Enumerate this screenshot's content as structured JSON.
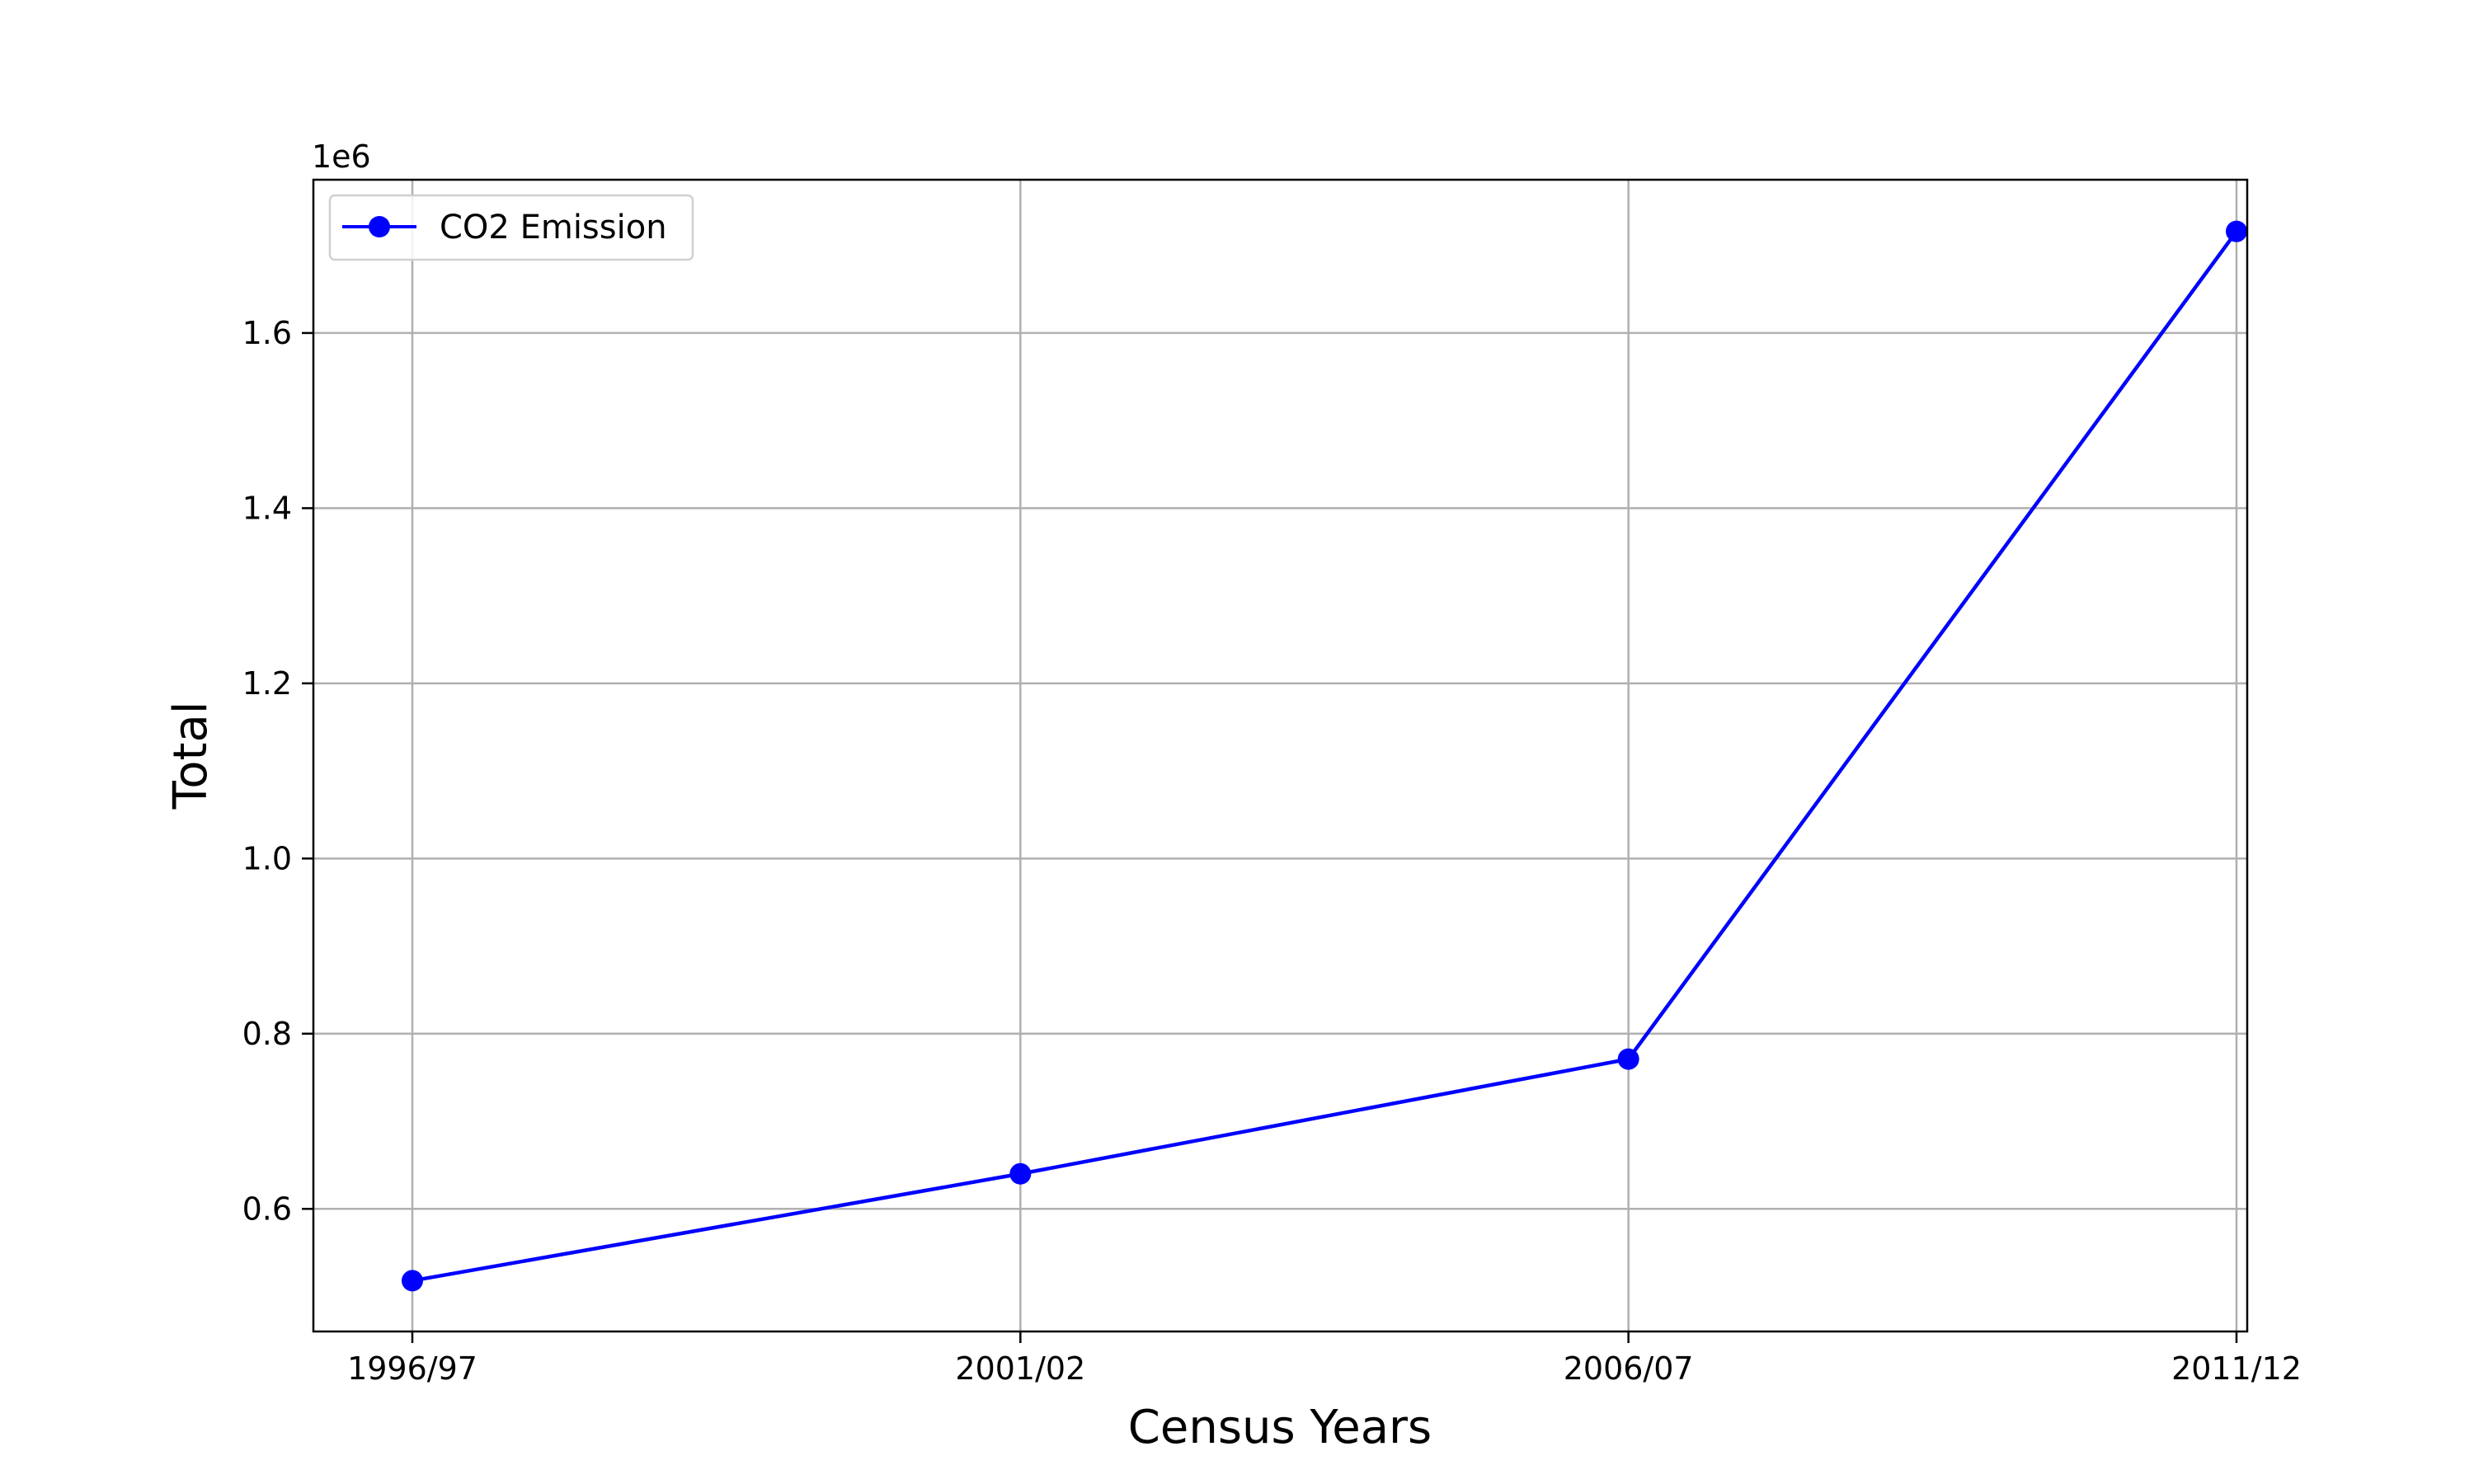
{
  "chart_data": {
    "type": "line",
    "xlabel": "Census Years",
    "ylabel": "Total",
    "y_offset_text": "1e6",
    "categories": [
      "1996/97",
      "2001/02",
      "2006/07",
      "2011/12"
    ],
    "series": [
      {
        "name": "CO2 Emission",
        "values": [
          518000,
          640000,
          771000,
          1716000
        ],
        "color": "#0000ff"
      }
    ],
    "y_scale_factor": 1000000,
    "ylim": [
      0.46,
      1.775
    ],
    "yticks": [
      0.6,
      0.8,
      1.0,
      1.2,
      1.4,
      1.6
    ],
    "ytick_labels": [
      "0.6",
      "0.8",
      "1.0",
      "1.2",
      "1.4",
      "1.6"
    ],
    "grid": true,
    "legend_position": "top-left"
  }
}
